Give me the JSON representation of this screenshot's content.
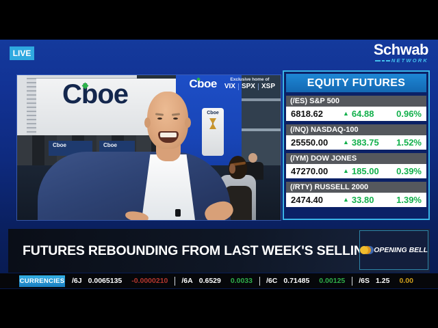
{
  "header": {
    "live_label": "LIVE",
    "brand_name": "Schwab",
    "brand_sub": "NETWORK"
  },
  "video": {
    "wall_sign": "Cboe",
    "pillar_sign": "Cboe",
    "desk_sign": "Cboe",
    "overlay": {
      "logo": "Cboe",
      "tagline": "Exclusive home of",
      "products": [
        "VIX",
        "SPX",
        "XSP"
      ]
    }
  },
  "futures_panel": {
    "title": "EQUITY FUTURES",
    "up_arrow": "▲",
    "rows": [
      {
        "label": "(/ES) S&P 500",
        "last": "6818.62",
        "change": "64.88",
        "pct": "0.96%",
        "trend": "up"
      },
      {
        "label": "(/NQ) NASDAQ-100",
        "last": "25550.00",
        "change": "383.75",
        "pct": "1.52%",
        "trend": "up"
      },
      {
        "label": "(/YM) DOW JONES",
        "last": "47270.00",
        "change": "185.00",
        "pct": "0.39%",
        "trend": "up"
      },
      {
        "label": "(/RTY) RUSSELL 2000",
        "last": "2474.40",
        "change": "33.80",
        "pct": "1.39%",
        "trend": "up"
      }
    ]
  },
  "banner": {
    "headline": "FUTURES REBOUNDING FROM LAST WEEK'S SELLING",
    "segment_label": "OPENING BELL"
  },
  "ticker": {
    "category_label": "CURRENCIES",
    "items": [
      {
        "symbol": "/6J",
        "last": "0.0065135",
        "change": "-0.0000210",
        "trend": "down"
      },
      {
        "symbol": "/6A",
        "last": "0.6529",
        "change": "0.0033",
        "trend": "up"
      },
      {
        "symbol": "/6C",
        "last": "0.71485",
        "change": "0.00125",
        "trend": "up"
      },
      {
        "symbol": "/6S",
        "last": "1.25",
        "change": "0.00",
        "trend": "flat"
      }
    ]
  },
  "colors": {
    "accent_cyan": "#2fa9e0",
    "panel_border_cyan": "#3ab5e8",
    "panel_header_blue": "#1778c8",
    "up_green": "#12b04b",
    "down_red": "#b5372e",
    "flat_yellow": "#cf9f1c",
    "frame_blue": "#0e2a7e"
  }
}
